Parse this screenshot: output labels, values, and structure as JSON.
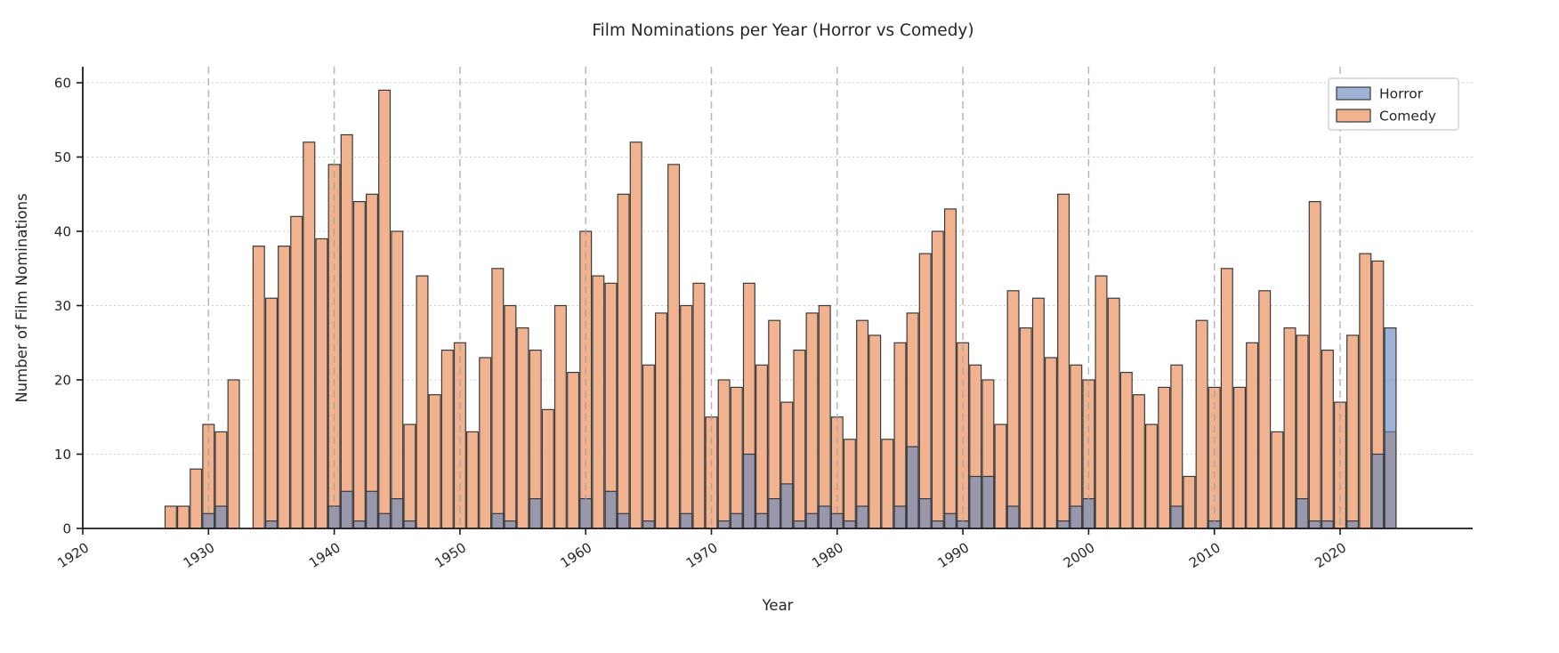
{
  "chart_data": {
    "type": "bar",
    "bar_mode": "overlaid",
    "title": "Film Nominations per Year (Horror vs Comedy)",
    "xlabel": "Year",
    "ylabel": "Number of Film Nominations",
    "x_ticks": [
      1920,
      1930,
      1940,
      1950,
      1960,
      1970,
      1980,
      1990,
      2000,
      2010,
      2020
    ],
    "y_ticks": [
      0,
      10,
      20,
      30,
      40,
      50,
      60
    ],
    "ylim": [
      0,
      62
    ],
    "xlim": [
      1920,
      2032
    ],
    "grid": "dashed horizontal gridlines + dashed vertical decade lines over bars",
    "legend_position": "upper right",
    "years": [
      1927,
      1928,
      1929,
      1930,
      1931,
      1932,
      1933,
      1934,
      1935,
      1936,
      1937,
      1938,
      1939,
      1940,
      1941,
      1942,
      1943,
      1944,
      1945,
      1946,
      1947,
      1948,
      1949,
      1950,
      1951,
      1952,
      1953,
      1954,
      1955,
      1956,
      1957,
      1958,
      1959,
      1960,
      1961,
      1962,
      1963,
      1964,
      1965,
      1966,
      1967,
      1968,
      1969,
      1970,
      1971,
      1972,
      1973,
      1974,
      1975,
      1976,
      1977,
      1978,
      1979,
      1980,
      1981,
      1982,
      1983,
      1984,
      1985,
      1986,
      1987,
      1988,
      1989,
      1990,
      1991,
      1992,
      1993,
      1994,
      1995,
      1996,
      1997,
      1998,
      1999,
      2000,
      2001,
      2002,
      2003,
      2004,
      2005,
      2006,
      2007,
      2008,
      2009,
      2010,
      2011,
      2012,
      2013,
      2014,
      2015,
      2016,
      2017,
      2018,
      2019,
      2020,
      2021,
      2022,
      2023,
      2024
    ],
    "series": [
      {
        "name": "Horror",
        "color": "#6886be",
        "opacity": 0.64,
        "values": [
          0,
          0,
          0,
          2,
          3,
          0,
          0,
          0,
          1,
          0,
          0,
          0,
          0,
          3,
          5,
          1,
          5,
          2,
          4,
          1,
          0,
          0,
          0,
          0,
          0,
          0,
          2,
          1,
          0,
          4,
          0,
          0,
          0,
          4,
          0,
          5,
          2,
          0,
          1,
          0,
          0,
          2,
          0,
          0,
          1,
          2,
          10,
          2,
          4,
          6,
          1,
          2,
          3,
          2,
          1,
          3,
          0,
          0,
          3,
          11,
          4,
          1,
          2,
          1,
          7,
          7,
          0,
          3,
          0,
          0,
          0,
          1,
          3,
          4,
          0,
          0,
          0,
          0,
          0,
          0,
          3,
          0,
          0,
          1,
          0,
          0,
          0,
          0,
          0,
          0,
          4,
          1,
          1,
          0,
          1,
          0,
          10,
          27
        ]
      },
      {
        "name": "Comedy",
        "color": "#f1b38f",
        "opacity": 1.0,
        "values": [
          3,
          3,
          8,
          14,
          13,
          20,
          0,
          38,
          31,
          38,
          42,
          52,
          39,
          49,
          53,
          44,
          45,
          59,
          40,
          14,
          34,
          18,
          24,
          25,
          13,
          23,
          35,
          30,
          27,
          24,
          16,
          30,
          21,
          40,
          34,
          33,
          45,
          52,
          22,
          29,
          49,
          30,
          33,
          15,
          20,
          19,
          33,
          22,
          28,
          17,
          24,
          29,
          30,
          15,
          12,
          28,
          26,
          12,
          25,
          29,
          37,
          40,
          43,
          25,
          22,
          20,
          14,
          32,
          27,
          31,
          23,
          45,
          22,
          20,
          34,
          31,
          21,
          18,
          14,
          19,
          22,
          7,
          28,
          19,
          35,
          19,
          25,
          32,
          13,
          27,
          26,
          44,
          24,
          17,
          26,
          37,
          36,
          13
        ]
      }
    ]
  },
  "colors": {
    "horror_fill": "rgba(104,134,190,0.64)",
    "comedy_fill": "#f1b38f",
    "bar_edge": "#3a3a3a",
    "grid_h": "#cdcdcd",
    "grid_v": "#9f9f9f",
    "spine": "#1a1a1a",
    "legend_border": "#c9c9c9",
    "text": "#262626"
  }
}
